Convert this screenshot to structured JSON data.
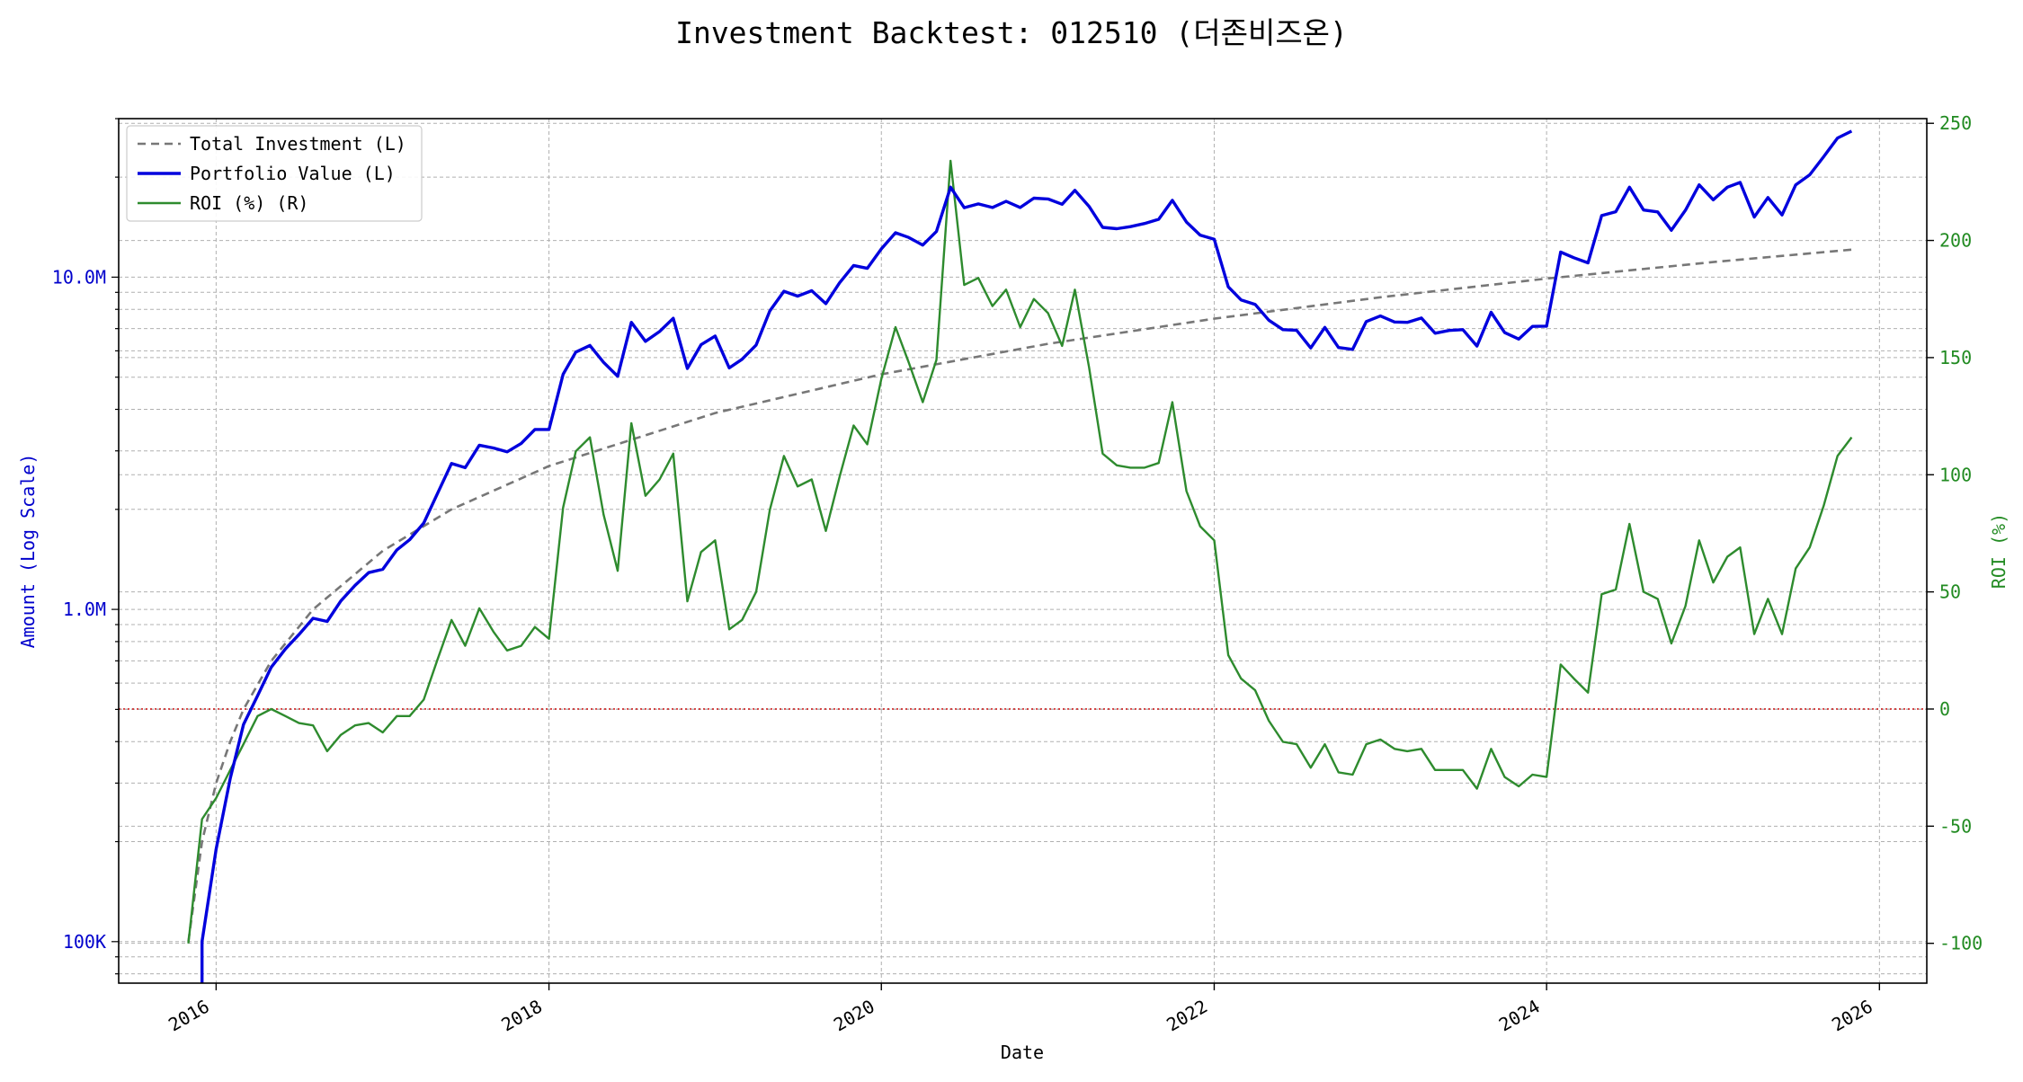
{
  "chart_data": {
    "type": "line",
    "title": "Investment Backtest: 012510 (더존비즈온)",
    "xlabel": "Date",
    "ylabel_left": "Amount (Log Scale)",
    "ylabel_right": "ROI (%)",
    "x_ticks": [
      "2016",
      "2018",
      "2020",
      "2022",
      "2024",
      "2026"
    ],
    "x_range": [
      "2015-06-01",
      "2026-04-15"
    ],
    "left_axis": {
      "scale": "log",
      "range": [
        75000,
        30000000
      ],
      "tick_labels": [
        {
          "label": "100K",
          "value": 100000
        },
        {
          "label": "1.0M",
          "value": 1000000
        },
        {
          "label": "10.0M",
          "value": 10000000
        }
      ]
    },
    "right_axis": {
      "scale": "linear",
      "range": [
        -117,
        252
      ],
      "ticks": [
        -100,
        -50,
        0,
        50,
        100,
        150,
        200,
        250
      ]
    },
    "zero_line": {
      "value": 0,
      "color": "#cc0000"
    },
    "grid": true,
    "legend_position": "top-left",
    "legend": [
      "Total Investment (L)",
      "Portfolio Value (L)",
      "ROI (%) (R)"
    ],
    "colors": {
      "total_investment": "#777777",
      "portfolio": "#0000dd",
      "roi": "#2e8b2e",
      "left_axis": "#0000cc",
      "right_axis": "#228b22"
    },
    "series": [
      {
        "name": "Total Investment (L)",
        "axis": "left",
        "style": "dashed",
        "points": [
          [
            "2015-11-01",
            100000
          ],
          [
            "2015-12-01",
            200000
          ],
          [
            "2016-01-01",
            300000
          ],
          [
            "2016-02-01",
            400000
          ],
          [
            "2016-03-01",
            500000
          ],
          [
            "2016-05-01",
            700000
          ],
          [
            "2016-08-01",
            1000000
          ],
          [
            "2017-01-01",
            1500000
          ],
          [
            "2017-06-01",
            2000000
          ],
          [
            "2018-01-01",
            2700000
          ],
          [
            "2019-01-01",
            3900000
          ],
          [
            "2020-01-01",
            5100000
          ],
          [
            "2021-01-01",
            6300000
          ],
          [
            "2022-01-01",
            7500000
          ],
          [
            "2023-01-01",
            8700000
          ],
          [
            "2024-01-01",
            9900000
          ],
          [
            "2025-01-01",
            11100000
          ],
          [
            "2025-11-01",
            12100000
          ]
        ]
      },
      {
        "name": "Portfolio Value (L)",
        "axis": "left",
        "style": "solid",
        "points": [
          [
            "2015-12-01",
            75000
          ],
          [
            "2015-12-01",
            100000
          ],
          [
            "2016-01-01",
            190000
          ],
          [
            "2016-02-01",
            310000
          ],
          [
            "2016-03-01",
            450000
          ],
          [
            "2016-04-01",
            550000
          ],
          [
            "2016-05-01",
            670000
          ],
          [
            "2016-06-01",
            760000
          ],
          [
            "2016-07-01",
            840000
          ],
          [
            "2016-08-01",
            940000
          ],
          [
            "2016-09-01",
            920000
          ],
          [
            "2016-10-01",
            1060000
          ],
          [
            "2016-11-01",
            1180000
          ],
          [
            "2016-12-01",
            1290000
          ],
          [
            "2017-01-01",
            1320000
          ],
          [
            "2017-02-01",
            1510000
          ],
          [
            "2017-03-01",
            1620000
          ],
          [
            "2017-04-01",
            1820000
          ],
          [
            "2017-05-01",
            2230000
          ],
          [
            "2017-06-01",
            2750000
          ],
          [
            "2017-07-01",
            2670000
          ],
          [
            "2017-08-01",
            3120000
          ],
          [
            "2017-09-01",
            3060000
          ],
          [
            "2017-10-01",
            2980000
          ],
          [
            "2017-11-01",
            3160000
          ],
          [
            "2017-12-01",
            3480000
          ],
          [
            "2018-01-01",
            3480000
          ],
          [
            "2018-02-01",
            5100000
          ],
          [
            "2018-03-01",
            5950000
          ],
          [
            "2018-04-01",
            6230000
          ],
          [
            "2018-05-01",
            5540000
          ],
          [
            "2018-06-01",
            5030000
          ],
          [
            "2018-07-01",
            7310000
          ],
          [
            "2018-08-01",
            6410000
          ],
          [
            "2018-09-01",
            6860000
          ],
          [
            "2018-10-01",
            7520000
          ],
          [
            "2018-11-01",
            5310000
          ],
          [
            "2018-12-01",
            6260000
          ],
          [
            "2019-01-01",
            6650000
          ],
          [
            "2019-02-01",
            5330000
          ],
          [
            "2019-03-01",
            5660000
          ],
          [
            "2019-04-01",
            6250000
          ],
          [
            "2019-05-01",
            7910000
          ],
          [
            "2019-06-01",
            9070000
          ],
          [
            "2019-07-01",
            8770000
          ],
          [
            "2019-08-01",
            9100000
          ],
          [
            "2019-09-01",
            8320000
          ],
          [
            "2019-10-01",
            9610000
          ],
          [
            "2019-11-01",
            10840000
          ],
          [
            "2019-12-01",
            10630000
          ],
          [
            "2020-01-01",
            12170000
          ],
          [
            "2020-02-01",
            13600000
          ],
          [
            "2020-03-01",
            13170000
          ],
          [
            "2020-04-01",
            12490000
          ],
          [
            "2020-05-01",
            13720000
          ],
          [
            "2020-06-01",
            18650000
          ],
          [
            "2020-07-01",
            16180000
          ],
          [
            "2020-08-01",
            16610000
          ],
          [
            "2020-09-01",
            16200000
          ],
          [
            "2020-10-01",
            16910000
          ],
          [
            "2020-11-01",
            16200000
          ],
          [
            "2020-12-01",
            17290000
          ],
          [
            "2021-01-01",
            17190000
          ],
          [
            "2021-02-01",
            16570000
          ],
          [
            "2021-03-01",
            18250000
          ],
          [
            "2021-04-01",
            16340000
          ],
          [
            "2021-05-01",
            14120000
          ],
          [
            "2021-06-01",
            13990000
          ],
          [
            "2021-07-01",
            14190000
          ],
          [
            "2021-08-01",
            14500000
          ],
          [
            "2021-09-01",
            14930000
          ],
          [
            "2021-10-01",
            17030000
          ],
          [
            "2021-11-01",
            14650000
          ],
          [
            "2021-12-01",
            13380000
          ],
          [
            "2022-01-01",
            13000000
          ],
          [
            "2022-02-01",
            9350000
          ],
          [
            "2022-03-01",
            8540000
          ],
          [
            "2022-04-01",
            8280000
          ],
          [
            "2022-05-01",
            7420000
          ],
          [
            "2022-06-01",
            6950000
          ],
          [
            "2022-07-01",
            6920000
          ],
          [
            "2022-08-01",
            6120000
          ],
          [
            "2022-09-01",
            7060000
          ],
          [
            "2022-10-01",
            6140000
          ],
          [
            "2022-11-01",
            6060000
          ],
          [
            "2022-12-01",
            7350000
          ],
          [
            "2023-01-01",
            7640000
          ],
          [
            "2023-02-01",
            7330000
          ],
          [
            "2023-03-01",
            7310000
          ],
          [
            "2023-04-01",
            7530000
          ],
          [
            "2023-05-01",
            6780000
          ],
          [
            "2023-06-01",
            6910000
          ],
          [
            "2023-07-01",
            6950000
          ],
          [
            "2023-08-01",
            6200000
          ],
          [
            "2023-09-01",
            7840000
          ],
          [
            "2023-10-01",
            6810000
          ],
          [
            "2023-11-01",
            6510000
          ],
          [
            "2023-12-01",
            7110000
          ],
          [
            "2024-01-01",
            7120000
          ],
          [
            "2024-02-01",
            11900000
          ],
          [
            "2024-03-01",
            11440000
          ],
          [
            "2024-04-01",
            11040000
          ],
          [
            "2024-05-01",
            15320000
          ],
          [
            "2024-06-01",
            15740000
          ],
          [
            "2024-07-01",
            18650000
          ],
          [
            "2024-08-01",
            15920000
          ],
          [
            "2024-09-01",
            15720000
          ],
          [
            "2024-10-01",
            13840000
          ],
          [
            "2024-11-01",
            15900000
          ],
          [
            "2024-12-01",
            18960000
          ],
          [
            "2025-01-01",
            17100000
          ],
          [
            "2025-02-01",
            18650000
          ],
          [
            "2025-03-01",
            19280000
          ],
          [
            "2025-04-01",
            15170000
          ],
          [
            "2025-05-01",
            17360000
          ],
          [
            "2025-06-01",
            15390000
          ],
          [
            "2025-07-01",
            18960000
          ],
          [
            "2025-08-01",
            20330000
          ],
          [
            "2025-09-01",
            23080000
          ],
          [
            "2025-10-01",
            26230000
          ],
          [
            "2025-11-01",
            27520000
          ]
        ]
      },
      {
        "name": "ROI (%) (R)",
        "axis": "right",
        "style": "solid",
        "points": [
          [
            "2015-11-01",
            -100
          ],
          [
            "2015-12-01",
            -47
          ],
          [
            "2016-01-01",
            -38
          ],
          [
            "2016-02-01",
            -26
          ],
          [
            "2016-03-01",
            -15
          ],
          [
            "2016-04-01",
            -3
          ],
          [
            "2016-05-01",
            0
          ],
          [
            "2016-06-01",
            -3
          ],
          [
            "2016-07-01",
            -6
          ],
          [
            "2016-08-01",
            -7
          ],
          [
            "2016-09-01",
            -18
          ],
          [
            "2016-10-01",
            -11
          ],
          [
            "2016-11-01",
            -7
          ],
          [
            "2016-12-01",
            -6
          ],
          [
            "2017-01-01",
            -10
          ],
          [
            "2017-02-01",
            -3
          ],
          [
            "2017-03-01",
            -3
          ],
          [
            "2017-04-01",
            4
          ],
          [
            "2017-05-01",
            21
          ],
          [
            "2017-06-01",
            38
          ],
          [
            "2017-07-01",
            27
          ],
          [
            "2017-08-01",
            43
          ],
          [
            "2017-09-01",
            33
          ],
          [
            "2017-10-01",
            25
          ],
          [
            "2017-11-01",
            27
          ],
          [
            "2017-12-01",
            35
          ],
          [
            "2018-01-01",
            30
          ],
          [
            "2018-02-01",
            86
          ],
          [
            "2018-03-01",
            110
          ],
          [
            "2018-04-01",
            116
          ],
          [
            "2018-05-01",
            83
          ],
          [
            "2018-06-01",
            59
          ],
          [
            "2018-07-01",
            122
          ],
          [
            "2018-08-01",
            91
          ],
          [
            "2018-09-01",
            98
          ],
          [
            "2018-10-01",
            109
          ],
          [
            "2018-11-01",
            46
          ],
          [
            "2018-12-01",
            67
          ],
          [
            "2019-01-01",
            72
          ],
          [
            "2019-02-01",
            34
          ],
          [
            "2019-03-01",
            38
          ],
          [
            "2019-04-01",
            50
          ],
          [
            "2019-05-01",
            85
          ],
          [
            "2019-06-01",
            108
          ],
          [
            "2019-07-01",
            95
          ],
          [
            "2019-08-01",
            98
          ],
          [
            "2019-09-01",
            76
          ],
          [
            "2019-10-01",
            99
          ],
          [
            "2019-11-01",
            121
          ],
          [
            "2019-12-01",
            113
          ],
          [
            "2020-01-01",
            141
          ],
          [
            "2020-02-01",
            163
          ],
          [
            "2020-03-01",
            148
          ],
          [
            "2020-04-01",
            131
          ],
          [
            "2020-05-01",
            149
          ],
          [
            "2020-06-01",
            234
          ],
          [
            "2020-07-01",
            181
          ],
          [
            "2020-08-01",
            184
          ],
          [
            "2020-09-01",
            172
          ],
          [
            "2020-10-01",
            179
          ],
          [
            "2020-11-01",
            163
          ],
          [
            "2020-12-01",
            175
          ],
          [
            "2021-01-01",
            169
          ],
          [
            "2021-02-01",
            155
          ],
          [
            "2021-03-01",
            179
          ],
          [
            "2021-04-01",
            146
          ],
          [
            "2021-05-01",
            109
          ],
          [
            "2021-06-01",
            104
          ],
          [
            "2021-07-01",
            103
          ],
          [
            "2021-08-01",
            103
          ],
          [
            "2021-09-01",
            105
          ],
          [
            "2021-10-01",
            131
          ],
          [
            "2021-11-01",
            93
          ],
          [
            "2021-12-01",
            78
          ],
          [
            "2022-01-01",
            72
          ],
          [
            "2022-02-01",
            23
          ],
          [
            "2022-03-01",
            13
          ],
          [
            "2022-04-01",
            8
          ],
          [
            "2022-05-01",
            -5
          ],
          [
            "2022-06-01",
            -14
          ],
          [
            "2022-07-01",
            -15
          ],
          [
            "2022-08-01",
            -25
          ],
          [
            "2022-09-01",
            -15
          ],
          [
            "2022-10-01",
            -27
          ],
          [
            "2022-11-01",
            -28
          ],
          [
            "2022-12-01",
            -15
          ],
          [
            "2023-01-01",
            -13
          ],
          [
            "2023-02-01",
            -17
          ],
          [
            "2023-03-01",
            -18
          ],
          [
            "2023-04-01",
            -17
          ],
          [
            "2023-05-01",
            -26
          ],
          [
            "2023-06-01",
            -26
          ],
          [
            "2023-07-01",
            -26
          ],
          [
            "2023-08-01",
            -34
          ],
          [
            "2023-09-01",
            -17
          ],
          [
            "2023-10-01",
            -29
          ],
          [
            "2023-11-01",
            -33
          ],
          [
            "2023-12-01",
            -28
          ],
          [
            "2024-01-01",
            -29
          ],
          [
            "2024-02-01",
            19
          ],
          [
            "2024-03-01",
            13
          ],
          [
            "2024-04-01",
            7
          ],
          [
            "2024-05-01",
            49
          ],
          [
            "2024-06-01",
            51
          ],
          [
            "2024-07-01",
            79
          ],
          [
            "2024-08-01",
            50
          ],
          [
            "2024-09-01",
            47
          ],
          [
            "2024-10-01",
            28
          ],
          [
            "2024-11-01",
            44
          ],
          [
            "2024-12-01",
            72
          ],
          [
            "2025-01-01",
            54
          ],
          [
            "2025-02-01",
            65
          ],
          [
            "2025-03-01",
            69
          ],
          [
            "2025-04-01",
            32
          ],
          [
            "2025-05-01",
            47
          ],
          [
            "2025-06-01",
            32
          ],
          [
            "2025-07-01",
            60
          ],
          [
            "2025-08-01",
            69
          ],
          [
            "2025-09-01",
            87
          ],
          [
            "2025-10-01",
            108
          ],
          [
            "2025-11-01",
            116
          ]
        ]
      }
    ]
  }
}
